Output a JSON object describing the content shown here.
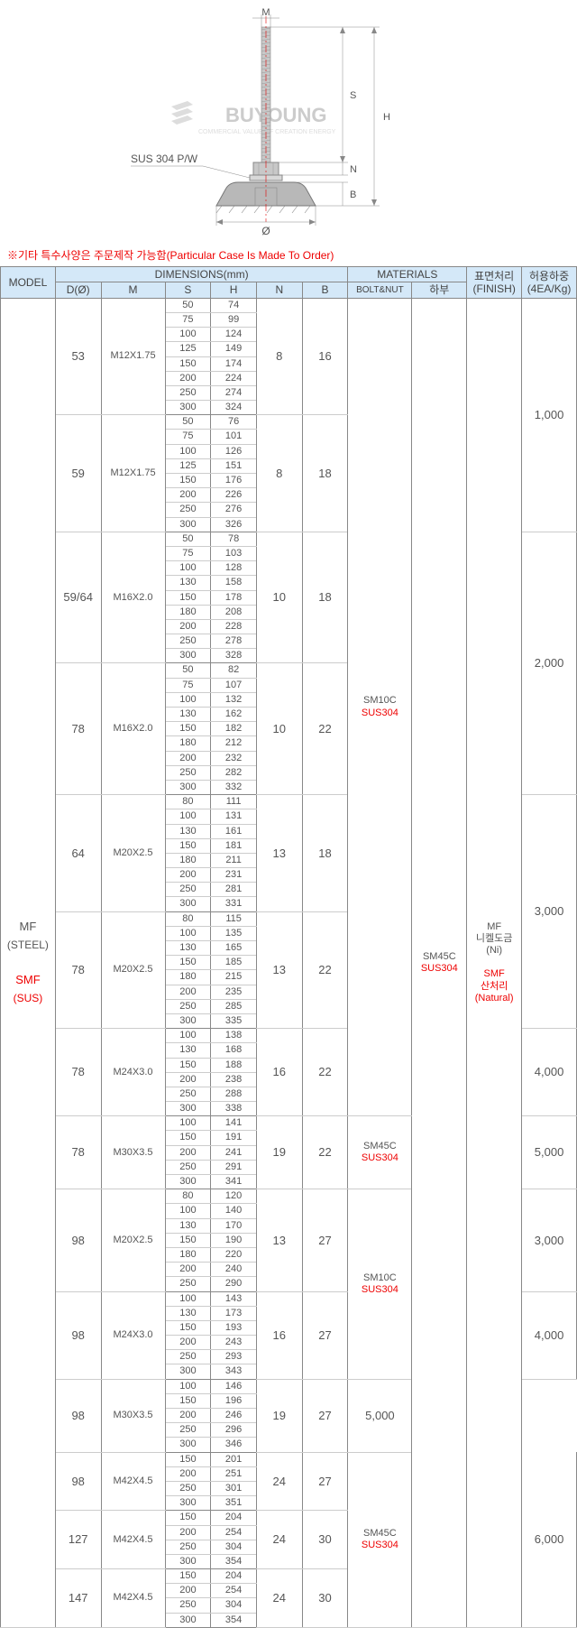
{
  "diagram": {
    "label_M": "M",
    "label_S": "S",
    "label_H": "H",
    "label_N": "N",
    "label_B": "B",
    "label_phi": "Ø",
    "callout": "SUS 304 P/W",
    "logo": "BUYOUNG",
    "logo_sub": "COMMERCIAL VALUE OF CREATION ENERGY",
    "bolt_color": "#c8c8c8",
    "base_color": "#b8b8b8",
    "dim_line_color": "#888888",
    "dim_red": "#e00000"
  },
  "note": "※기타 특수사양은 주문제작 가능함(Particular Case Is Made To Order)",
  "header": {
    "model": "MODEL",
    "dimensions": "DIMENSIONS(mm)",
    "materials": "MATERIALS",
    "finish_k": "표면처리",
    "finish_e": "(FINISH)",
    "load_k": "허용하중",
    "load_e": "(4EA/Kg)",
    "D": "D(Ø)",
    "M": "M",
    "S": "S",
    "H": "H",
    "N": "N",
    "B": "B",
    "boltnut": "BOLT&NUT",
    "lower": "하부"
  },
  "model": {
    "steel_label": "MF",
    "steel_sub": "(STEEL)",
    "sus_label": "SMF",
    "sus_sub": "(SUS)"
  },
  "boltnut1": {
    "t": "SM10C",
    "b": "SUS304"
  },
  "boltnut2": {
    "t": "SM45C",
    "b": "SUS304"
  },
  "boltnut3": {
    "t": "SM10C",
    "b": "SUS304"
  },
  "boltnut4": {
    "t": "SM45C",
    "b": "SUS304"
  },
  "lower_mat": {
    "t": "SM45C",
    "b": "SUS304"
  },
  "finish": {
    "steel_t": "MF",
    "steel_m": "니켈도금",
    "steel_b": "(Ni)",
    "sus_t": "SMF",
    "sus_m": "산처리",
    "sus_b": "(Natural)"
  },
  "groups": [
    {
      "D": "53",
      "M": "M12X1.75",
      "N": "8",
      "B": "16",
      "SH": [
        [
          "50",
          "74"
        ],
        [
          "75",
          "99"
        ],
        [
          "100",
          "124"
        ],
        [
          "125",
          "149"
        ],
        [
          "150",
          "174"
        ],
        [
          "200",
          "224"
        ],
        [
          "250",
          "274"
        ],
        [
          "300",
          "324"
        ]
      ],
      "load": "1,000",
      "loadspan": 16
    },
    {
      "D": "59",
      "M": "M12X1.75",
      "N": "8",
      "B": "18",
      "SH": [
        [
          "50",
          "76"
        ],
        [
          "75",
          "101"
        ],
        [
          "100",
          "126"
        ],
        [
          "125",
          "151"
        ],
        [
          "150",
          "176"
        ],
        [
          "200",
          "226"
        ],
        [
          "250",
          "276"
        ],
        [
          "300",
          "326"
        ]
      ]
    },
    {
      "D": "59/64",
      "M": "M16X2.0",
      "N": "10",
      "B": "18",
      "SH": [
        [
          "50",
          "78"
        ],
        [
          "75",
          "103"
        ],
        [
          "100",
          "128"
        ],
        [
          "130",
          "158"
        ],
        [
          "150",
          "178"
        ],
        [
          "180",
          "208"
        ],
        [
          "200",
          "228"
        ],
        [
          "250",
          "278"
        ],
        [
          "300",
          "328"
        ]
      ],
      "load": "2,000",
      "loadspan": 18
    },
    {
      "D": "78",
      "M": "M16X2.0",
      "N": "10",
      "B": "22",
      "SH": [
        [
          "50",
          "82"
        ],
        [
          "75",
          "107"
        ],
        [
          "100",
          "132"
        ],
        [
          "130",
          "162"
        ],
        [
          "150",
          "182"
        ],
        [
          "180",
          "212"
        ],
        [
          "200",
          "232"
        ],
        [
          "250",
          "282"
        ],
        [
          "300",
          "332"
        ]
      ]
    },
    {
      "D": "64",
      "M": "M20X2.5",
      "N": "13",
      "B": "18",
      "SH": [
        [
          "80",
          "111"
        ],
        [
          "100",
          "131"
        ],
        [
          "130",
          "161"
        ],
        [
          "150",
          "181"
        ],
        [
          "180",
          "211"
        ],
        [
          "200",
          "231"
        ],
        [
          "250",
          "281"
        ],
        [
          "300",
          "331"
        ]
      ],
      "load": "3,000",
      "loadspan": 16
    },
    {
      "D": "78",
      "M": "M20X2.5",
      "N": "13",
      "B": "22",
      "SH": [
        [
          "80",
          "115"
        ],
        [
          "100",
          "135"
        ],
        [
          "130",
          "165"
        ],
        [
          "150",
          "185"
        ],
        [
          "180",
          "215"
        ],
        [
          "200",
          "235"
        ],
        [
          "250",
          "285"
        ],
        [
          "300",
          "335"
        ]
      ]
    },
    {
      "D": "78",
      "M": "M24X3.0",
      "N": "16",
      "B": "22",
      "SH": [
        [
          "100",
          "138"
        ],
        [
          "130",
          "168"
        ],
        [
          "150",
          "188"
        ],
        [
          "200",
          "238"
        ],
        [
          "250",
          "288"
        ],
        [
          "300",
          "338"
        ]
      ],
      "load": "4,000",
      "loadspan": 6
    },
    {
      "D": "78",
      "M": "M30X3.5",
      "N": "19",
      "B": "22",
      "SH": [
        [
          "100",
          "141"
        ],
        [
          "150",
          "191"
        ],
        [
          "200",
          "241"
        ],
        [
          "250",
          "291"
        ],
        [
          "300",
          "341"
        ]
      ],
      "load": "5,000",
      "loadspan": 5,
      "bn": 2
    },
    {
      "D": "98",
      "M": "M20X2.5",
      "N": "13",
      "B": "27",
      "SH": [
        [
          "80",
          "120"
        ],
        [
          "100",
          "140"
        ],
        [
          "130",
          "170"
        ],
        [
          "150",
          "190"
        ],
        [
          "180",
          "220"
        ],
        [
          "200",
          "240"
        ],
        [
          "250",
          "290"
        ]
      ],
      "load": "3,000",
      "loadspan": 7,
      "bn": 3,
      "bnspan": 13
    },
    {
      "D": "98",
      "M": "M24X3.0",
      "N": "16",
      "B": "27",
      "SH": [
        [
          "100",
          "143"
        ],
        [
          "130",
          "173"
        ],
        [
          "150",
          "193"
        ],
        [
          "200",
          "243"
        ],
        [
          "250",
          "293"
        ],
        [
          "300",
          "343"
        ]
      ],
      "load": "4,000",
      "loadspan": 6
    },
    {
      "D": "98",
      "M": "M30X3.5",
      "N": "19",
      "B": "27",
      "SH": [
        [
          "100",
          "146"
        ],
        [
          "150",
          "196"
        ],
        [
          "200",
          "246"
        ],
        [
          "250",
          "296"
        ],
        [
          "300",
          "346"
        ]
      ],
      "load": "5,000",
      "loadspan": 5
    },
    {
      "D": "98",
      "M": "M42X4.5",
      "N": "24",
      "B": "27",
      "SH": [
        [
          "150",
          "201"
        ],
        [
          "200",
          "251"
        ],
        [
          "250",
          "301"
        ],
        [
          "300",
          "351"
        ]
      ],
      "load": "6,000",
      "loadspan": 12,
      "bn": 4,
      "bnspan": 12
    },
    {
      "D": "127",
      "M": "M42X4.5",
      "N": "24",
      "B": "30",
      "SH": [
        [
          "150",
          "204"
        ],
        [
          "200",
          "254"
        ],
        [
          "250",
          "304"
        ],
        [
          "300",
          "354"
        ]
      ]
    },
    {
      "D": "147",
      "M": "M42X4.5",
      "N": "24",
      "B": "30",
      "SH": [
        [
          "150",
          "204"
        ],
        [
          "200",
          "254"
        ],
        [
          "250",
          "304"
        ],
        [
          "300",
          "354"
        ]
      ]
    }
  ],
  "colwidths": {
    "model": 60,
    "D": 50,
    "M": 70,
    "S": 50,
    "H": 50,
    "N": 50,
    "B": 50,
    "bn": 70,
    "lower": 60,
    "finish": 60,
    "load": 60
  }
}
